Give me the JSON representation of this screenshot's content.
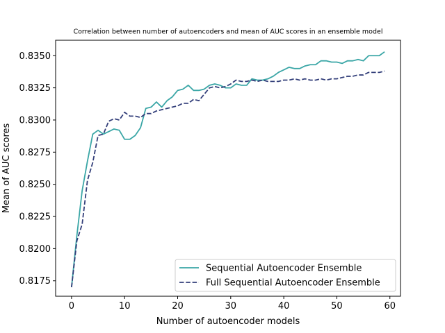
{
  "chart_data": {
    "type": "line",
    "title": "Correlation between number of autoencoders and mean of AUC scores in an ensemble model",
    "xlabel": "Number of autoencoder models",
    "ylabel": "Mean of AUC scores",
    "xlim": [
      -3,
      62
    ],
    "ylim": [
      0.8163,
      0.8362
    ],
    "x_ticks": [
      0,
      10,
      20,
      30,
      40,
      50,
      60
    ],
    "x_tick_labels": [
      "0",
      "10",
      "20",
      "30",
      "40",
      "50",
      "60"
    ],
    "y_ticks": [
      0.8175,
      0.82,
      0.8225,
      0.825,
      0.8275,
      0.83,
      0.8325,
      0.835
    ],
    "y_tick_labels": [
      "0.8175",
      "0.8200",
      "0.8225",
      "0.8250",
      "0.8275",
      "0.8300",
      "0.8325",
      "0.8350"
    ],
    "grid": false,
    "legend_position": "lower-right",
    "x": [
      0,
      1,
      2,
      3,
      4,
      5,
      6,
      7,
      8,
      9,
      10,
      11,
      12,
      13,
      14,
      15,
      16,
      17,
      18,
      19,
      20,
      21,
      22,
      23,
      24,
      25,
      26,
      27,
      28,
      29,
      30,
      31,
      32,
      33,
      34,
      35,
      36,
      37,
      38,
      39,
      40,
      41,
      42,
      43,
      44,
      45,
      46,
      47,
      48,
      49,
      50,
      51,
      52,
      53,
      54,
      55,
      56,
      57,
      58,
      59
    ],
    "series": [
      {
        "name": "Sequential Autoencoder Ensemble",
        "color": "#3aa6a6",
        "dash": "solid",
        "values": [
          0.817,
          0.821,
          0.8245,
          0.8268,
          0.8289,
          0.8292,
          0.8289,
          0.8291,
          0.8293,
          0.8292,
          0.8285,
          0.8285,
          0.8288,
          0.8294,
          0.8309,
          0.831,
          0.8314,
          0.831,
          0.8315,
          0.8318,
          0.8323,
          0.8324,
          0.8327,
          0.8323,
          0.8323,
          0.8324,
          0.8327,
          0.8328,
          0.8327,
          0.8325,
          0.8325,
          0.8328,
          0.8327,
          0.8327,
          0.8332,
          0.8331,
          0.8331,
          0.8332,
          0.8334,
          0.8337,
          0.8339,
          0.8341,
          0.834,
          0.834,
          0.8342,
          0.8343,
          0.8343,
          0.8346,
          0.8346,
          0.8345,
          0.8345,
          0.8344,
          0.8346,
          0.8346,
          0.8347,
          0.8346,
          0.835,
          0.835,
          0.835,
          0.8353
        ]
      },
      {
        "name": "Full Sequential Autoencoder Ensemble",
        "color": "#333f7a",
        "dash": "dashed",
        "values": [
          0.817,
          0.8206,
          0.8219,
          0.8253,
          0.8267,
          0.8288,
          0.8289,
          0.8299,
          0.8301,
          0.83,
          0.8306,
          0.8303,
          0.8303,
          0.8302,
          0.8305,
          0.8305,
          0.8307,
          0.8308,
          0.8309,
          0.831,
          0.8311,
          0.8313,
          0.8313,
          0.8316,
          0.8315,
          0.832,
          0.8325,
          0.8326,
          0.8325,
          0.8326,
          0.8328,
          0.8331,
          0.833,
          0.833,
          0.8331,
          0.833,
          0.8331,
          0.833,
          0.833,
          0.833,
          0.8331,
          0.8331,
          0.8332,
          0.8331,
          0.8332,
          0.8331,
          0.8331,
          0.8332,
          0.8331,
          0.8332,
          0.8332,
          0.8333,
          0.8334,
          0.8334,
          0.8335,
          0.8335,
          0.8337,
          0.8337,
          0.8337,
          0.8338
        ]
      }
    ]
  }
}
